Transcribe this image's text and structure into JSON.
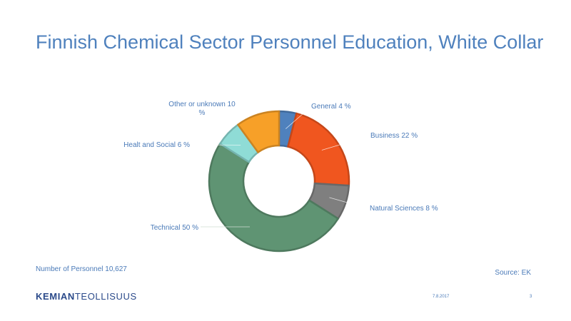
{
  "slide": {
    "title": "Finnish Chemical Sector Personnel Education, White Collar",
    "footnote": "Number of Personnel 10,627",
    "source": "Source: EK",
    "date": "7.8.2017",
    "page_number": "3",
    "logo": {
      "part1": "KEMIAN",
      "part2": "TEOLLISUUS"
    }
  },
  "chart_data": {
    "type": "pie",
    "variant": "donut",
    "categories": [
      "General",
      "Business",
      "Natural Sciences",
      "Technical",
      "Healt and Social",
      "Other or unknown"
    ],
    "values": [
      4,
      22,
      8,
      50,
      6,
      10
    ],
    "unit": "%",
    "labels": [
      [
        "General 4 %"
      ],
      [
        "Business 22 %"
      ],
      [
        "Natural Sciences 8 %"
      ],
      [
        "Technical 50 %"
      ],
      [
        "Healt and Social 6 %"
      ],
      [
        "Other or unknown 10",
        "%"
      ]
    ],
    "colors": [
      "#4f81bd",
      "#f0561f",
      "#7f7f7f",
      "#5f9473",
      "#8fdcd6",
      "#f7a028"
    ],
    "legend": "none"
  }
}
